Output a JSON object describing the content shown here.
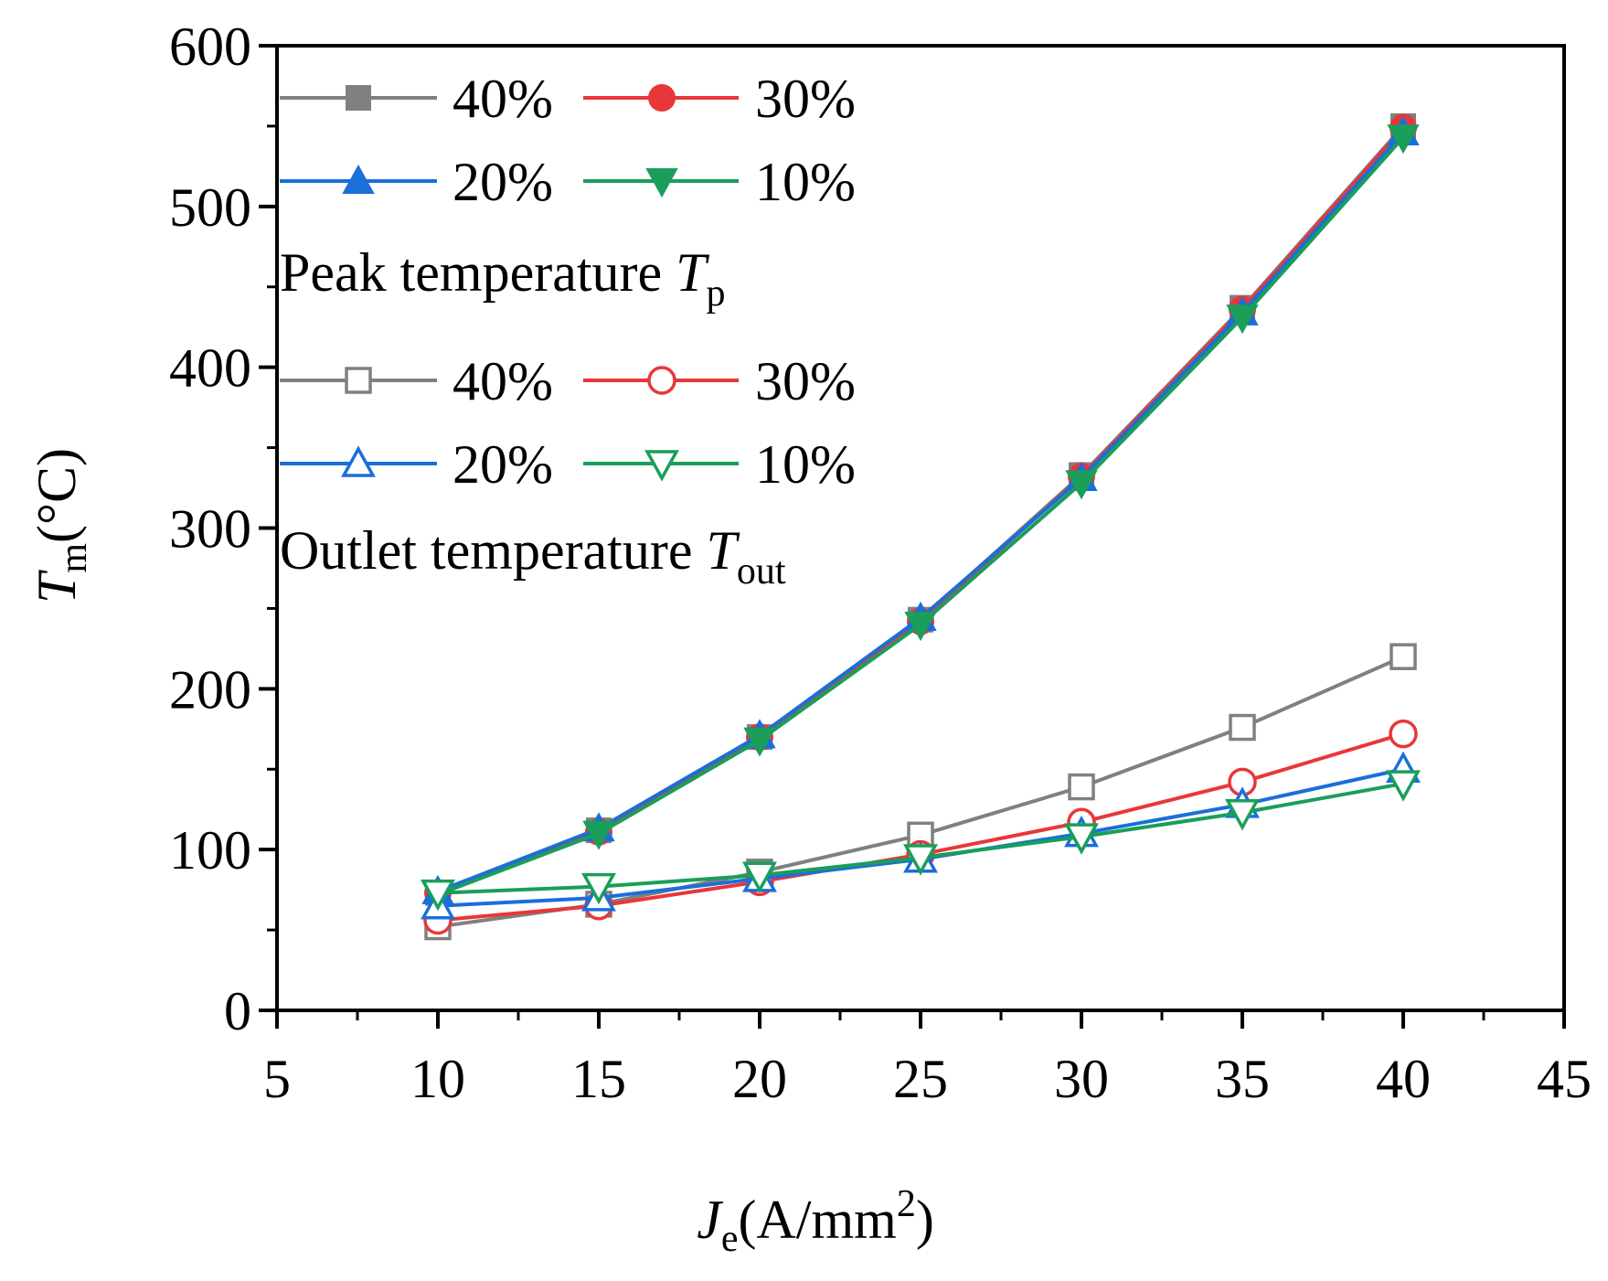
{
  "chart_data": {
    "type": "line",
    "title": "",
    "xlabel": {
      "main": "J",
      "sub": "e",
      "rest": "(A/mm",
      "sup": "2",
      "close": ")"
    },
    "ylabel": {
      "main": "T",
      "sub": "m",
      "rest": "(°C)"
    },
    "xlim": [
      5,
      45
    ],
    "ylim": [
      0,
      600
    ],
    "xticks": [
      5,
      10,
      15,
      20,
      25,
      30,
      35,
      40,
      45
    ],
    "xtick_labels": [
      "5",
      "10",
      "15",
      "20",
      "25",
      "30",
      "35",
      "40",
      "45"
    ],
    "yticks": [
      0,
      100,
      200,
      300,
      400,
      500,
      600
    ],
    "ytick_labels": [
      "0",
      "100",
      "200",
      "300",
      "400",
      "500",
      "600"
    ],
    "x": [
      10,
      15,
      20,
      25,
      30,
      35,
      40
    ],
    "series": [
      {
        "name": "40%",
        "group": "peak",
        "color": "#808080",
        "marker": "square",
        "filled": true,
        "values": [
          73,
          112,
          170,
          243,
          333,
          437,
          550
        ]
      },
      {
        "name": "30%",
        "group": "peak",
        "color": "#e8373a",
        "marker": "circle",
        "filled": true,
        "values": [
          73,
          111,
          170,
          242,
          332,
          436,
          549
        ]
      },
      {
        "name": "20%",
        "group": "peak",
        "color": "#1a6fd9",
        "marker": "triangle-up",
        "filled": true,
        "values": [
          74,
          113,
          171,
          244,
          331,
          434,
          546
        ]
      },
      {
        "name": "10%",
        "group": "peak",
        "color": "#1a9e5a",
        "marker": "triangle-down",
        "filled": true,
        "values": [
          72,
          110,
          168,
          240,
          328,
          431,
          543
        ]
      },
      {
        "name": "40%",
        "group": "outlet",
        "color": "#808080",
        "marker": "square",
        "filled": false,
        "values": [
          52,
          66,
          86,
          109,
          139,
          176,
          220
        ]
      },
      {
        "name": "30%",
        "group": "outlet",
        "color": "#e8373a",
        "marker": "circle",
        "filled": false,
        "values": [
          56,
          65,
          80,
          97,
          117,
          142,
          172
        ]
      },
      {
        "name": "20%",
        "group": "outlet",
        "color": "#1a6fd9",
        "marker": "triangle-up",
        "filled": false,
        "values": [
          65,
          70,
          82,
          94,
          110,
          128,
          150
        ]
      },
      {
        "name": "10%",
        "group": "outlet",
        "color": "#1a9e5a",
        "marker": "triangle-down",
        "filled": false,
        "values": [
          73,
          77,
          84,
          95,
          108,
          123,
          141
        ]
      }
    ],
    "legend": {
      "position": "top-left",
      "peak_title": {
        "main": "Peak temperature ",
        "italic": "T",
        "sub": "p"
      },
      "outlet_title": {
        "main": "Outlet temperature ",
        "italic": "T",
        "sub": "out"
      }
    }
  }
}
